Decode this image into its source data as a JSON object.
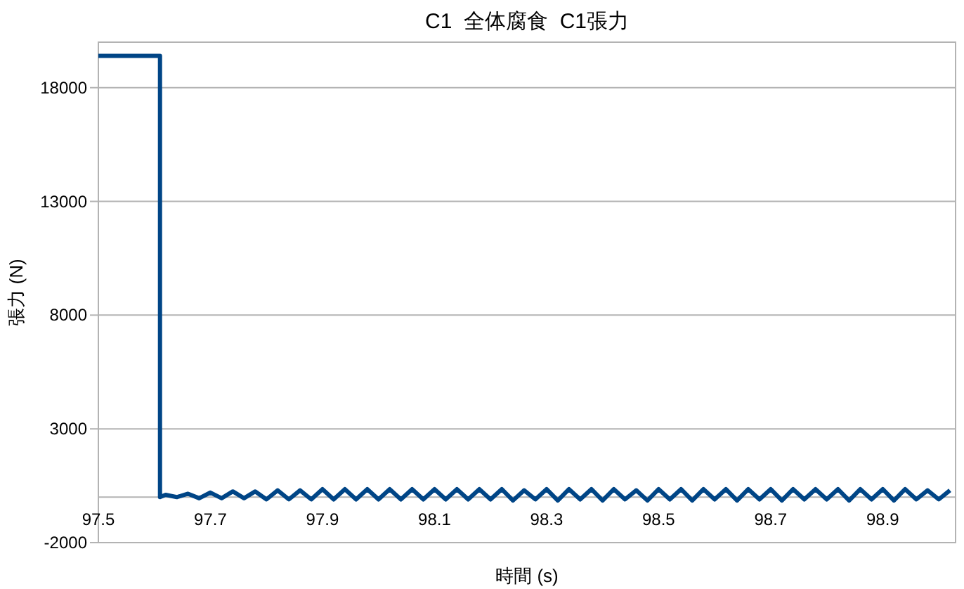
{
  "chart_data": {
    "type": "line",
    "title": "C1  全体腐食  C1張力",
    "xlabel": "時間 (s)",
    "ylabel": "張力 (N)",
    "xlim": [
      97.5,
      99.03
    ],
    "xticks": [
      97.5,
      97.7,
      97.9,
      98.1,
      98.3,
      98.5,
      98.7,
      98.9
    ],
    "ylim": [
      -2000,
      20000
    ],
    "yticks": [
      -2000,
      3000,
      8000,
      13000,
      18000
    ],
    "grid": "y",
    "marker": "none",
    "line_style": "solid",
    "series": [
      {
        "color": "#004586",
        "x": [
          97.5,
          97.61,
          97.61,
          97.62,
          97.64,
          97.66,
          97.68,
          97.7,
          97.72,
          97.74,
          97.76,
          97.78,
          97.8,
          97.82,
          97.84,
          97.86,
          97.88,
          97.9,
          97.92,
          97.94,
          97.96,
          97.98,
          98.0,
          98.02,
          98.04,
          98.06,
          98.08,
          98.1,
          98.12,
          98.14,
          98.16,
          98.18,
          98.2,
          98.22,
          98.24,
          98.26,
          98.28,
          98.3,
          98.32,
          98.34,
          98.36,
          98.38,
          98.4,
          98.42,
          98.44,
          98.46,
          98.48,
          98.5,
          98.52,
          98.54,
          98.56,
          98.58,
          98.6,
          98.62,
          98.64,
          98.66,
          98.68,
          98.7,
          98.72,
          98.74,
          98.76,
          98.78,
          98.8,
          98.82,
          98.84,
          98.86,
          98.88,
          98.9,
          98.92,
          98.94,
          98.96,
          98.98,
          99.0,
          99.02
        ],
        "values": [
          19400,
          19400,
          0,
          100,
          0,
          150,
          -50,
          200,
          -50,
          250,
          -50,
          250,
          -100,
          300,
          -100,
          300,
          -100,
          350,
          -100,
          350,
          -100,
          350,
          -100,
          350,
          -100,
          350,
          -100,
          350,
          -100,
          350,
          -100,
          350,
          -100,
          350,
          -150,
          300,
          -100,
          350,
          -150,
          350,
          -100,
          350,
          -150,
          350,
          -100,
          300,
          -150,
          350,
          -100,
          350,
          -150,
          350,
          -100,
          350,
          -150,
          350,
          -100,
          350,
          -150,
          350,
          -100,
          350,
          -100,
          350,
          -150,
          350,
          -100,
          350,
          -150,
          350,
          -100,
          300,
          -100,
          300
        ]
      }
    ]
  }
}
